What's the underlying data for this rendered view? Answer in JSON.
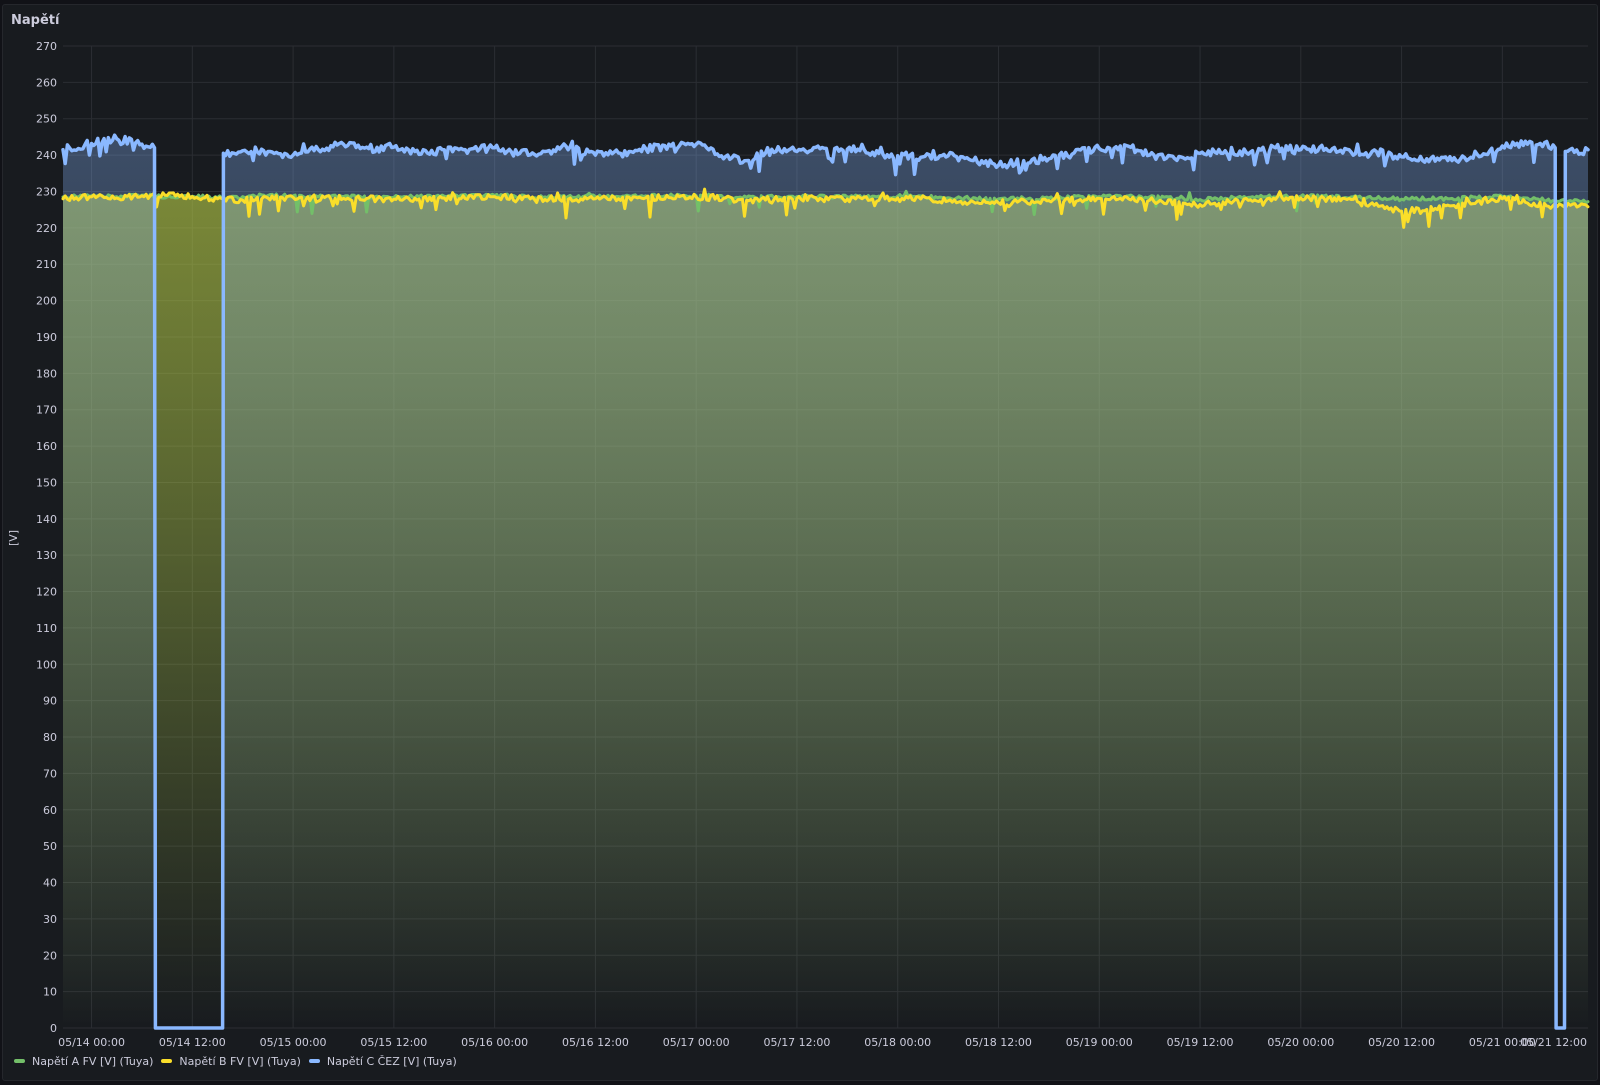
{
  "panel": {
    "title": "Napětí"
  },
  "colors": {
    "series_a": "#73bf69",
    "series_b": "#fade2a",
    "series_c": "#8ab8ff",
    "grid": "#2b2e33",
    "text": "#ccccdc",
    "background": "#181b1f"
  },
  "chart_data": {
    "type": "line",
    "ylabel": "[V]",
    "ylim": [
      0,
      270
    ],
    "yticks": [
      0,
      10,
      20,
      30,
      40,
      50,
      60,
      70,
      80,
      90,
      100,
      110,
      120,
      130,
      140,
      150,
      160,
      170,
      180,
      190,
      200,
      210,
      220,
      230,
      240,
      250,
      260,
      270
    ],
    "x_range_hours": [
      -3.4,
      178.2
    ],
    "x_ticks": [
      {
        "hour": 0,
        "label": "05/14 00:00"
      },
      {
        "hour": 12,
        "label": "05/14 12:00"
      },
      {
        "hour": 24,
        "label": "05/15 00:00"
      },
      {
        "hour": 36,
        "label": "05/15 12:00"
      },
      {
        "hour": 48,
        "label": "05/16 00:00"
      },
      {
        "hour": 60,
        "label": "05/16 12:00"
      },
      {
        "hour": 72,
        "label": "05/17 00:00"
      },
      {
        "hour": 84,
        "label": "05/17 12:00"
      },
      {
        "hour": 96,
        "label": "05/18 00:00"
      },
      {
        "hour": 108,
        "label": "05/18 12:00"
      },
      {
        "hour": 120,
        "label": "05/19 00:00"
      },
      {
        "hour": 132,
        "label": "05/19 12:00"
      },
      {
        "hour": 144,
        "label": "05/20 00:00"
      },
      {
        "hour": 156,
        "label": "05/20 12:00"
      },
      {
        "hour": 168,
        "label": "05/21 00:00"
      },
      {
        "hour": 180,
        "label": "05/21 12:00"
      }
    ],
    "grid": true,
    "legend_position": "bottom-left",
    "series": [
      {
        "name": "Napětí A FV [V] (Tuya)",
        "color": "#73bf69",
        "hours": [
          -3.4,
          0,
          3,
          6,
          9,
          12,
          15,
          18,
          21,
          24,
          30,
          36,
          42,
          48,
          54,
          60,
          66,
          72,
          78,
          84,
          90,
          96,
          102,
          108,
          114,
          120,
          126,
          132,
          138,
          144,
          150,
          156,
          162,
          168,
          174,
          178.2
        ],
        "values": [
          228.5,
          228.8,
          228.6,
          229.0,
          228.5,
          228.7,
          228.3,
          228.6,
          228.9,
          228.8,
          228.6,
          228.4,
          228.7,
          228.9,
          228.5,
          228.6,
          228.8,
          228.9,
          228.4,
          228.6,
          228.5,
          228.7,
          228.3,
          228.0,
          228.2,
          228.6,
          228.5,
          227.8,
          228.4,
          228.7,
          228.5,
          227.9,
          228.1,
          228.6,
          227.5,
          227.2
        ]
      },
      {
        "name": "Napětí B FV [V] (Tuya)",
        "color": "#fade2a",
        "hours": [
          -3.4,
          0,
          3,
          6,
          9,
          12,
          15,
          18,
          21,
          24,
          30,
          36,
          42,
          48,
          54,
          60,
          66,
          72,
          78,
          84,
          90,
          96,
          102,
          108,
          114,
          120,
          126,
          132,
          138,
          144,
          150,
          156,
          162,
          168,
          174,
          178.2
        ],
        "values": [
          228.0,
          228.5,
          228.2,
          228.8,
          228.9,
          228.6,
          228.0,
          227.6,
          228.2,
          228.4,
          228.1,
          227.9,
          228.2,
          228.6,
          227.8,
          228.0,
          228.3,
          228.5,
          227.6,
          228.1,
          227.9,
          228.2,
          227.4,
          226.9,
          227.5,
          228.1,
          227.6,
          226.4,
          227.7,
          228.2,
          227.8,
          224.6,
          226.1,
          228.0,
          226.0,
          225.8
        ]
      },
      {
        "name": "Napětí C ČEZ [V] (Tuya)",
        "color": "#8ab8ff",
        "hours": [
          -3.4,
          0,
          3,
          6,
          7.5,
          7.6,
          15.6,
          15.7,
          18,
          21,
          24,
          27,
          30,
          33,
          36,
          39,
          42,
          45,
          48,
          51,
          54,
          57,
          60,
          63,
          66,
          69,
          72,
          75,
          78,
          81,
          84,
          87,
          90,
          93,
          96,
          99,
          102,
          105,
          108,
          111,
          114,
          117,
          120,
          123,
          126,
          129,
          132,
          135,
          138,
          141,
          144,
          147,
          150,
          153,
          156,
          159,
          162,
          165,
          168,
          171,
          174.3,
          174.4,
          175.4,
          175.5,
          178.2
        ],
        "values": [
          241.5,
          243.2,
          244.5,
          243.0,
          242.0,
          0,
          0,
          240.5,
          241.2,
          241.0,
          240.0,
          241.5,
          243.0,
          241.8,
          242.2,
          240.2,
          241.5,
          241.6,
          242.0,
          240.5,
          241.0,
          242.3,
          240.0,
          240.5,
          241.8,
          242.5,
          243.0,
          239.8,
          238.5,
          241.6,
          241.0,
          242.1,
          241.6,
          240.8,
          239.8,
          239.5,
          239.8,
          238.5,
          237.2,
          238.5,
          239.0,
          240.6,
          241.8,
          242.8,
          240.0,
          239.0,
          240.5,
          241.2,
          240.8,
          242.0,
          241.5,
          241.8,
          240.8,
          241.0,
          239.5,
          239.0,
          238.5,
          240.2,
          242.5,
          243.0,
          242.0,
          0,
          0,
          241.0,
          241.5
        ]
      }
    ]
  }
}
